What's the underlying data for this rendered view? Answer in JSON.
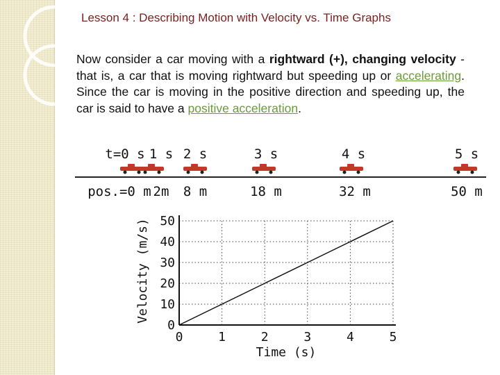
{
  "slide": {
    "title": "Lesson 4 : Describing Motion with Velocity vs. Time Graphs",
    "body": {
      "p1": "Now consider a car moving with a ",
      "b1": "rightward (+), changing velocity",
      "p2": " - that is, a car that is moving rightward but speeding up or ",
      "k1": "accelerating",
      "p3": ". Since the car is moving in the positive direction and speeding up, the car is said to have a ",
      "k2": "positive acceleration",
      "p4": "."
    }
  },
  "motion_diagram": {
    "time_labels": [
      "t=0 s",
      "1 s",
      "2 s",
      "3 s",
      "4 s",
      "5 s"
    ],
    "position_labels": [
      "pos.=0 m",
      "2m",
      "8 m",
      "18 m",
      "32 m",
      "50 m"
    ],
    "car_color": "#c0392b"
  },
  "chart_data": {
    "type": "line",
    "xlabel": "Time (s)",
    "ylabel": "Velocity (m/s)",
    "xlim": [
      0,
      5
    ],
    "ylim": [
      0,
      50
    ],
    "x_ticks": [
      0,
      1,
      2,
      3,
      4,
      5
    ],
    "y_ticks": [
      0,
      10,
      20,
      30,
      40,
      50
    ],
    "grid": "dotted",
    "series": [
      {
        "x": [
          0,
          1,
          2,
          3,
          4,
          5
        ],
        "values": [
          0,
          10,
          20,
          30,
          40,
          50
        ]
      }
    ]
  }
}
